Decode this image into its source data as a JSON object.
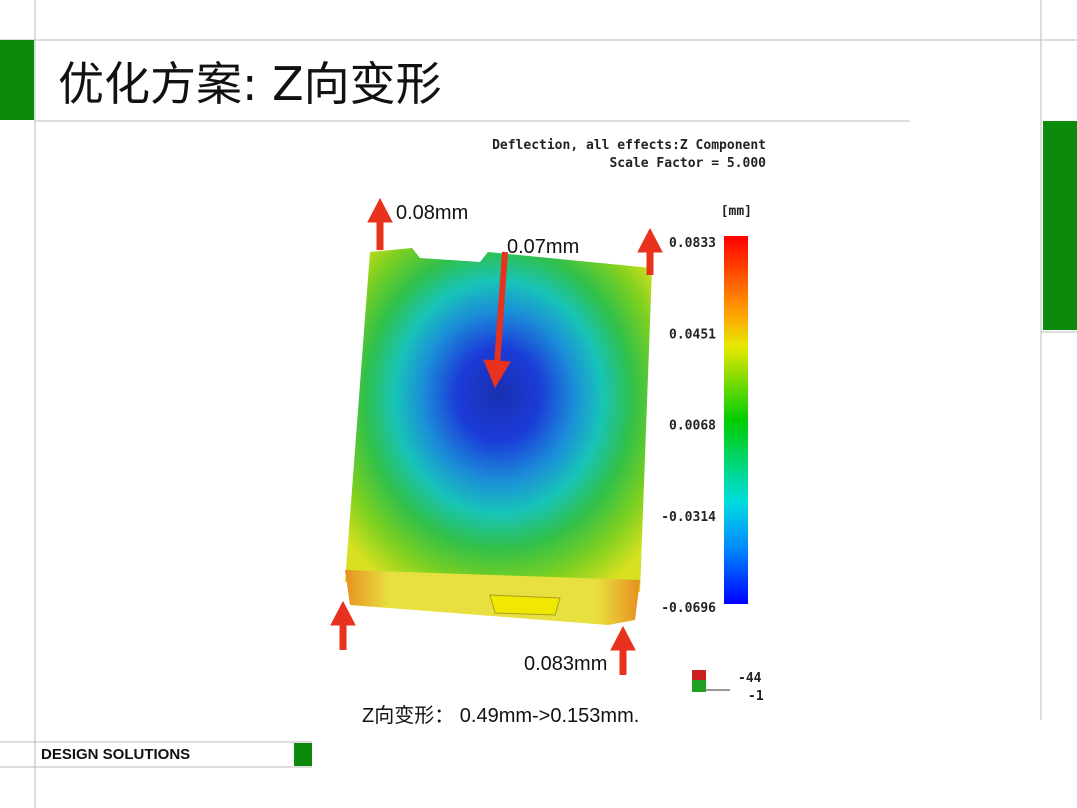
{
  "slide": {
    "title": "优化方案: Z向变形",
    "caption": "Z向变形：  0.49mm->0.153mm.",
    "footer": "DESIGN SOLUTIONS"
  },
  "plot": {
    "header": [
      "Deflection, all effects:Z Component",
      "Scale Factor = 5.000"
    ],
    "unit": "[mm]",
    "legend_labels": [
      "0.0833",
      "0.0451",
      "0.0068",
      "-0.0314",
      "-0.0696"
    ],
    "annotations": [
      "0.08mm",
      "0.07mm",
      "0.083mm"
    ],
    "axis_triad": [
      "-44",
      "-1"
    ]
  }
}
